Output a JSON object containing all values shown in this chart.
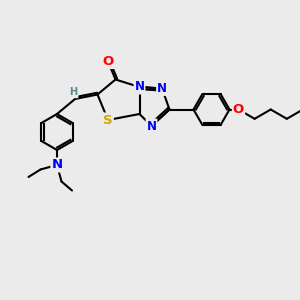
{
  "bg_color": "#ebebeb",
  "atom_colors": {
    "C": "#000000",
    "N": "#0000ff",
    "O": "#ff0000",
    "S": "#ccaa00",
    "H": "#5a8a8a"
  },
  "bond_color": "#000000",
  "bond_width": 1.5,
  "font_size": 8.5
}
